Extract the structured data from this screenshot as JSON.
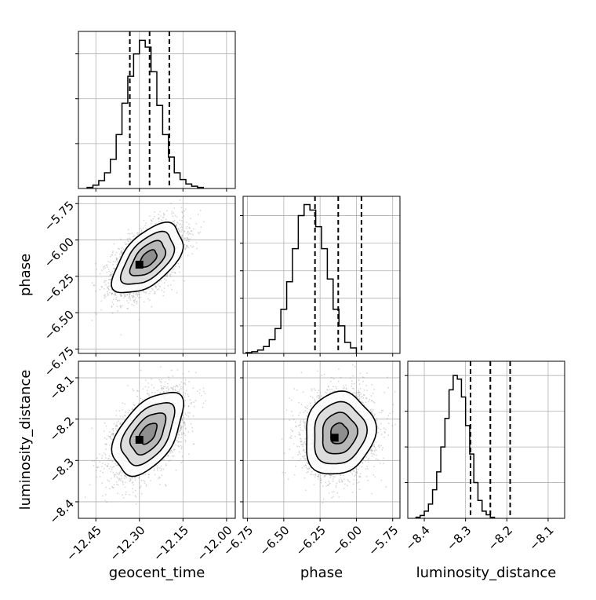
{
  "chart_data": {
    "type": "corner",
    "parameters": [
      {
        "key": "geocent_time",
        "label": "geocent_time",
        "range": [
          -12.51,
          -11.97
        ],
        "ticks": [
          -12.45,
          -12.3,
          -12.15,
          -12.0
        ],
        "tick_labels": [
          "−12.45",
          "−12.30",
          "−12.15",
          "−12.00"
        ],
        "quantiles": [
          -12.333,
          -12.265,
          -12.197
        ],
        "hist_edges_start": -12.48,
        "hist_bin_width": 0.02,
        "hist_counts": [
          0.5,
          1.5,
          3.5,
          7,
          13,
          24,
          38,
          50,
          60,
          66,
          63,
          52,
          37,
          24,
          14,
          7,
          4,
          2,
          1,
          0.5
        ],
        "hist_ylim": [
          0,
          70
        ],
        "hist_yticks": [
          20,
          40,
          60
        ]
      },
      {
        "key": "phase",
        "label": "phase",
        "range": [
          -6.78,
          -5.7
        ],
        "ticks": [
          -6.75,
          -6.5,
          -6.25,
          -6.0,
          -5.75
        ],
        "tick_labels": [
          "−6.75",
          "−6.50",
          "−6.25",
          "−6.00",
          "−5.75"
        ],
        "quantiles": [
          -6.285,
          -6.125,
          -5.965
        ],
        "hist_edges_start": -6.76,
        "hist_bin_width": 0.04,
        "hist_counts": [
          0.3,
          0.6,
          1.2,
          2.5,
          5,
          9,
          16,
          26,
          38,
          50,
          54,
          52,
          46,
          38,
          27,
          16,
          10,
          4,
          2
        ],
        "hist_ylim": [
          0,
          57
        ],
        "hist_yticks": [
          10,
          20,
          30,
          40,
          50
        ]
      },
      {
        "key": "luminosity_distance",
        "label": "luminosity_distance",
        "range": [
          -8.44,
          -8.06
        ],
        "ticks": [
          -8.4,
          -8.3,
          -8.2,
          -8.1
        ],
        "tick_labels": [
          "−8.4",
          "−8.3",
          "−8.2",
          "−8.1"
        ],
        "quantiles": [
          -8.288,
          -8.24,
          -8.192
        ],
        "hist_edges_start": -8.42,
        "hist_bin_width": 0.01,
        "hist_counts": [
          0.3,
          0.8,
          2,
          4,
          8,
          13,
          20,
          28,
          36,
          40,
          39,
          34,
          26,
          18,
          10,
          5,
          2,
          1,
          0.3
        ],
        "hist_ylim": [
          0,
          44
        ],
        "hist_yticks": [
          10,
          20,
          30,
          40
        ]
      }
    ],
    "pairs": [
      {
        "x": "geocent_time",
        "y": "phase",
        "mean": [
          -12.27,
          -6.13
        ],
        "sd": [
          0.06,
          0.12
        ],
        "corr": 0.55,
        "peak": [
          -12.3,
          -6.17
        ]
      },
      {
        "x": "geocent_time",
        "y": "luminosity_distance",
        "mean": [
          -12.27,
          -8.235
        ],
        "sd": [
          0.06,
          0.05
        ],
        "corr": 0.5,
        "peak": [
          -12.3,
          -8.25
        ]
      },
      {
        "x": "phase",
        "y": "luminosity_distance",
        "mean": [
          -6.12,
          -8.235
        ],
        "sd": [
          0.12,
          0.05
        ],
        "corr": 0.1,
        "peak": [
          -6.15,
          -8.245
        ]
      }
    ],
    "contour_levels_sigma": [
      0.5,
      1.0,
      1.5,
      2.0
    ],
    "grid": true
  }
}
